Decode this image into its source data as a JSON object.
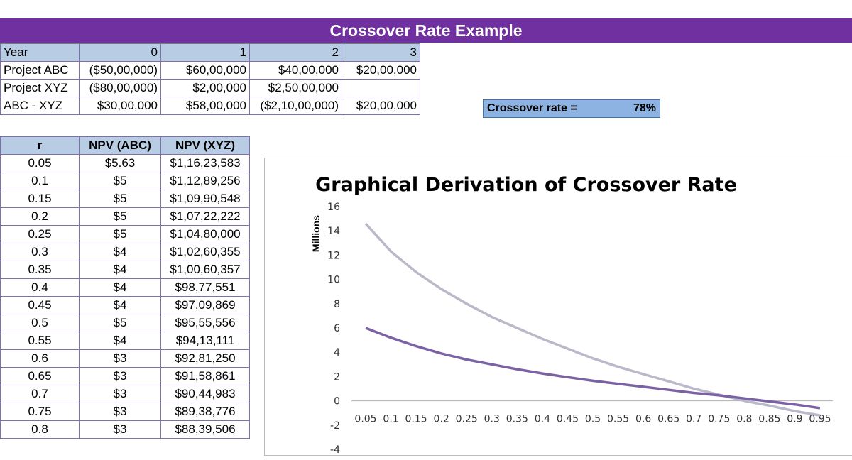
{
  "sheet_title": "Crossover Rate Example",
  "cashflow_table": {
    "rows": [
      [
        "Year",
        "0",
        "1",
        "2",
        "3"
      ],
      [
        "Project ABC",
        "($50,00,000)",
        "$60,00,000",
        "$40,00,000",
        "$20,00,000"
      ],
      [
        "Project XYZ",
        "($80,00,000)",
        "$2,00,000",
        "$2,50,00,000",
        ""
      ],
      [
        "ABC - XYZ",
        "$30,00,000",
        "$58,00,000",
        "($2,10,00,000)",
        "$20,00,000"
      ]
    ]
  },
  "crossover": {
    "label": "Crossover rate =",
    "value": "78%"
  },
  "npv_table": {
    "headers": [
      "r",
      "NPV (ABC)",
      "NPV (XYZ)"
    ],
    "rows": [
      [
        "0.05",
        "$5.63",
        "$1,16,23,583"
      ],
      [
        "0.1",
        "$5",
        "$1,12,89,256"
      ],
      [
        "0.15",
        "$5",
        "$1,09,90,548"
      ],
      [
        "0.2",
        "$5",
        "$1,07,22,222"
      ],
      [
        "0.25",
        "$5",
        "$1,04,80,000"
      ],
      [
        "0.3",
        "$4",
        "$1,02,60,355"
      ],
      [
        "0.35",
        "$4",
        "$1,00,60,357"
      ],
      [
        "0.4",
        "$4",
        "$98,77,551"
      ],
      [
        "0.45",
        "$4",
        "$97,09,869"
      ],
      [
        "0.5",
        "$5",
        "$95,55,556"
      ],
      [
        "0.55",
        "$4",
        "$94,13,111"
      ],
      [
        "0.6",
        "$3",
        "$92,81,250"
      ],
      [
        "0.65",
        "$3",
        "$91,58,861"
      ],
      [
        "0.7",
        "$3",
        "$90,44,983"
      ],
      [
        "0.75",
        "$3",
        "$89,38,776"
      ],
      [
        "0.8",
        "$3",
        "$88,39,506"
      ]
    ]
  },
  "chart_data": {
    "type": "line",
    "title": "Graphical Derivation of Crossover Rate",
    "ylabel": "Millions",
    "xlabel": "",
    "ylim": [
      -4,
      16
    ],
    "yticks": [
      16,
      14,
      12,
      10,
      8,
      6,
      4,
      2,
      0,
      -2,
      -4
    ],
    "x": [
      "0.05",
      "0.1",
      "0.15",
      "0.2",
      "0.25",
      "0.3",
      "0.35",
      "0.4",
      "0.45",
      "0.5",
      "0.55",
      "0.6",
      "0.65",
      "0.7",
      "0.75",
      "0.8",
      "0.85",
      "0.9",
      "0.95"
    ],
    "series": [
      {
        "color": "#b9b9c9",
        "values": [
          14.6,
          12.3,
          10.6,
          9.2,
          8.0,
          6.9,
          6.0,
          5.1,
          4.3,
          3.5,
          2.8,
          2.2,
          1.6,
          1.0,
          0.5,
          0.0,
          -0.4,
          -0.85,
          -1.2
        ]
      },
      {
        "color": "#7b62a4",
        "values": [
          6.0,
          5.2,
          4.5,
          3.9,
          3.4,
          3.0,
          2.6,
          2.25,
          1.95,
          1.65,
          1.4,
          1.15,
          0.9,
          0.65,
          0.45,
          0.2,
          -0.05,
          -0.3,
          -0.6
        ]
      }
    ],
    "grid": false,
    "legend": "none"
  }
}
